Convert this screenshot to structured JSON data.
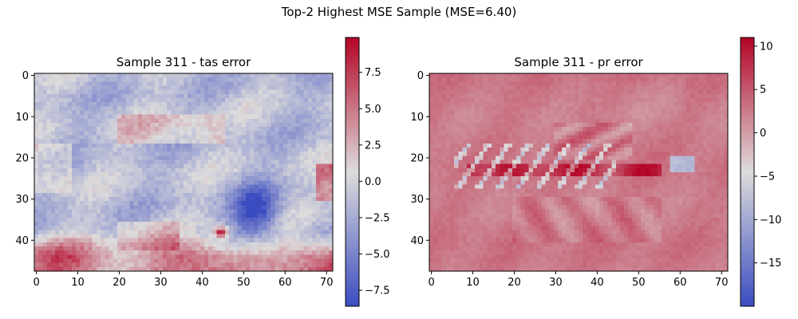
{
  "suptitle": "Top-2 Highest MSE Sample (MSE=6.40)",
  "colormap": "coolwarm",
  "colors": {
    "low": "#3b4cc0",
    "mid": "#dddcdc",
    "high": "#b40426"
  },
  "chart_data": [
    {
      "type": "heatmap",
      "title": "Sample 311 - tas error",
      "grid": {
        "rows": 48,
        "cols": 72
      },
      "xlim": [
        -0.5,
        71.5
      ],
      "ylim": [
        47.5,
        -0.5
      ],
      "xticks": [
        "0",
        "10",
        "20",
        "30",
        "40",
        "50",
        "60",
        "70"
      ],
      "yticks": [
        "0",
        "10",
        "20",
        "30",
        "40"
      ],
      "clim": [
        -8.6,
        9.9
      ],
      "colorbar_ticks": [
        "7.5",
        "5.0",
        "2.5",
        "0.0",
        "−2.5",
        "−5.0",
        "−7.5"
      ],
      "grid_lines": false,
      "features": [
        {
          "region": "background",
          "rows": [
            0,
            47
          ],
          "cols": [
            0,
            71
          ],
          "value": -1.5
        },
        {
          "region": "mid-latitude warm band",
          "rows": [
            10,
            16
          ],
          "cols": [
            20,
            45
          ],
          "value": 2.0
        },
        {
          "region": "cold patch right",
          "rows": [
            28,
            40
          ],
          "cols": [
            48,
            58
          ],
          "value": -7.0
        },
        {
          "region": "hot spot",
          "rows": [
            37,
            39
          ],
          "cols": [
            43,
            46
          ],
          "value": 9.0
        },
        {
          "region": "warm south band",
          "rows": [
            40,
            47
          ],
          "cols": [
            0,
            71
          ],
          "value": 7.0
        }
      ]
    },
    {
      "type": "heatmap",
      "title": "Sample 311 - pr error",
      "grid": {
        "rows": 48,
        "cols": 72
      },
      "xlim": [
        -0.5,
        71.5
      ],
      "ylim": [
        47.5,
        -0.5
      ],
      "xticks": [
        "0",
        "10",
        "20",
        "30",
        "40",
        "50",
        "60",
        "70"
      ],
      "yticks": [
        "0",
        "10",
        "20",
        "30",
        "40"
      ],
      "clim": [
        -20,
        11
      ],
      "colorbar_ticks": [
        "10",
        "5",
        "0",
        "−5",
        "−10",
        "−15"
      ],
      "grid_lines": false,
      "features": [
        {
          "region": "background",
          "rows": [
            0,
            47
          ],
          "cols": [
            0,
            71
          ],
          "value": 3.0
        },
        {
          "region": "equatorial band",
          "rows": [
            22,
            25
          ],
          "cols": [
            8,
            55
          ],
          "value": 9.5
        },
        {
          "region": "negative streaks",
          "rows": [
            19,
            26
          ],
          "cols": [
            6,
            42
          ],
          "value": -14.0
        },
        {
          "region": "cold spot right",
          "rows": [
            21,
            23
          ],
          "cols": [
            58,
            63
          ],
          "value": -12.0
        }
      ]
    }
  ]
}
